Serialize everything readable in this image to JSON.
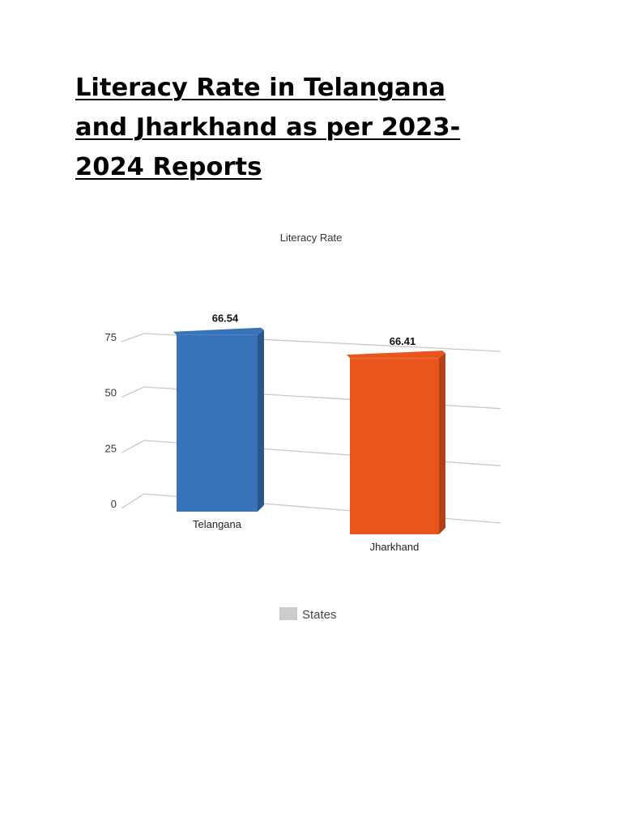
{
  "document": {
    "title": "Literacy Rate in Telangana \nand Jharkhand as per 2023-\n2024 Reports"
  },
  "chart_data": {
    "type": "bar",
    "title": "Literacy Rate",
    "categories": [
      "Telangana",
      "Jharkhand"
    ],
    "values": [
      66.54,
      66.41
    ],
    "data_labels": [
      "66.54",
      "66.41"
    ],
    "bar_colors": [
      "#3872b9",
      "#e8561c"
    ],
    "y_ticks": [
      0,
      25,
      50,
      75
    ],
    "ylim": [
      0,
      75
    ],
    "grid": true,
    "style": "3d",
    "legend": {
      "position": "bottom",
      "entries": [
        "States"
      ],
      "color": "#cccccc"
    }
  }
}
